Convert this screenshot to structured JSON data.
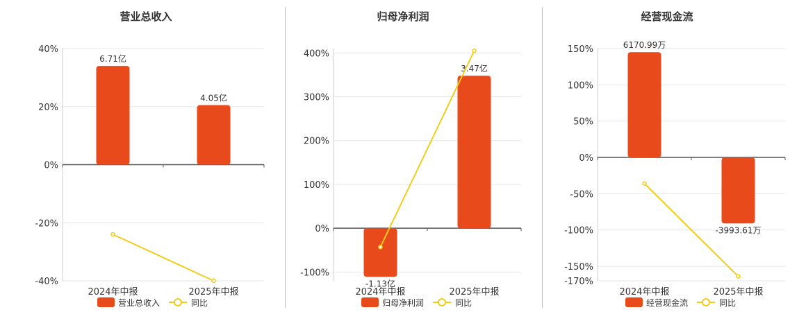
{
  "legend": {
    "yoy_label": "同比"
  },
  "chart_data": [
    {
      "type": "bar",
      "title": "营业总收入",
      "categories": [
        "2024年中报",
        "2025年中报"
      ],
      "series": [
        {
          "name": "营业总收入",
          "type": "bar",
          "values": [
            34.0,
            20.5
          ],
          "labels": [
            "6.71亿",
            "4.05亿"
          ]
        },
        {
          "name": "同比",
          "type": "line",
          "values": [
            -24.0,
            -40.0
          ]
        }
      ],
      "ylim": [
        -40,
        40
      ],
      "yticks": [
        40,
        20,
        0,
        -20,
        -40
      ],
      "ytick_labels": [
        "40%",
        "20%",
        "0%",
        "-20%",
        "-40%"
      ],
      "grid": true,
      "legend": "bottom",
      "colors": {
        "bar": "#e84a1b",
        "line": "#f2cc1b",
        "axis": "#555555",
        "grid": "#e6e6e6"
      }
    },
    {
      "type": "bar",
      "title": "归母净利润",
      "categories": [
        "2024年中报",
        "2025年中报"
      ],
      "series": [
        {
          "name": "归母净利润",
          "type": "bar",
          "values": [
            -111.0,
            348.0
          ],
          "labels": [
            "-1.13亿",
            "3.47亿"
          ]
        },
        {
          "name": "同比",
          "type": "line",
          "values": [
            -43.0,
            405.0
          ]
        }
      ],
      "ylim": [
        -120,
        410
      ],
      "yticks": [
        400,
        300,
        200,
        100,
        0,
        -100
      ],
      "ytick_labels": [
        "400%",
        "300%",
        "200%",
        "100%",
        "0%",
        "-100%"
      ],
      "grid": true,
      "legend": "bottom",
      "colors": {
        "bar": "#e84a1b",
        "line": "#f2cc1b",
        "axis": "#555555",
        "grid": "#e6e6e6"
      }
    },
    {
      "type": "bar",
      "title": "经营现金流",
      "categories": [
        "2024年中报",
        "2025年中报"
      ],
      "series": [
        {
          "name": "经营现金流",
          "type": "bar",
          "values": [
            145.0,
            -91.0
          ],
          "labels": [
            "6170.99万",
            "-3993.61万"
          ]
        },
        {
          "name": "同比",
          "type": "line",
          "values": [
            -36.0,
            -164.0
          ]
        }
      ],
      "ylim": [
        -170,
        150
      ],
      "yticks": [
        150,
        100,
        50,
        0,
        -50,
        -100,
        -150,
        -170
      ],
      "ytick_labels": [
        "150%",
        "100%",
        "50%",
        "0%",
        "-50%",
        "-100%",
        "-150%",
        "-170%"
      ],
      "grid": true,
      "legend": "bottom",
      "colors": {
        "bar": "#e84a1b",
        "line": "#f2cc1b",
        "axis": "#555555",
        "grid": "#e6e6e6"
      }
    }
  ]
}
